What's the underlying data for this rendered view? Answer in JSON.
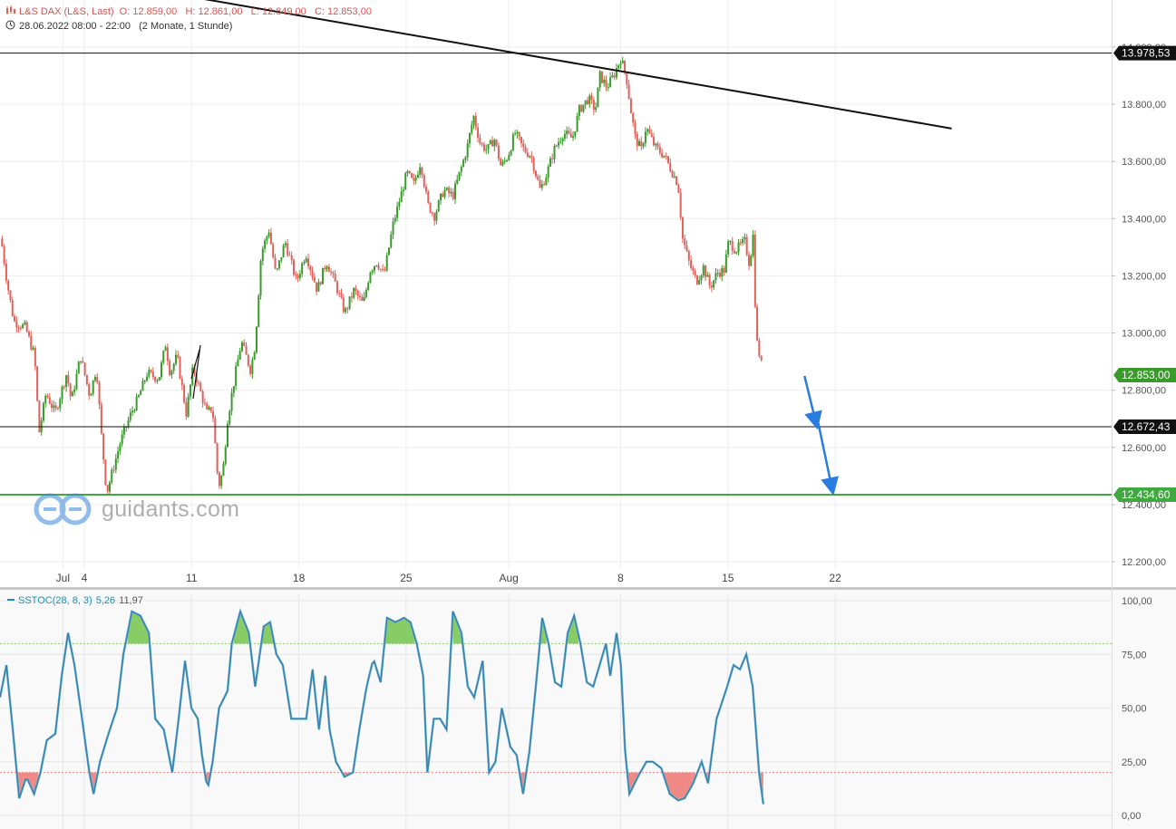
{
  "header": {
    "instrument": "L&S DAX (L&S, Last)",
    "ohlc": "O: 12.859,00   H: 12.861,00   L: 12.849,00   C: 12.853,00",
    "period": "28.06.2022 08:00 - 22:00   (2 Monate, 1 Stunde)"
  },
  "watermark": "guidants.com",
  "indicator": {
    "name": "SSTOC(28, 8, 3)",
    "k": "5,26",
    "d": "11,97"
  },
  "colors": {
    "up": "#3a9a2c",
    "down": "#e0605a",
    "accent_blue": "#2a7de0",
    "support_green": "#3fa93f",
    "stoch_line": "#3f7ea8",
    "stoch_signal": "#65b8d8",
    "overbought_fill": "#88cc66",
    "oversold_fill": "#f08a86"
  },
  "chart_data": [
    {
      "type": "line",
      "title": "L&S DAX (L&S, Last)",
      "x_ticks": [
        "Jul",
        "4",
        "11",
        "18",
        "25",
        "Aug",
        "8",
        "15",
        "22"
      ],
      "y_ticks": [
        "12.200,00",
        "12.400,00",
        "12.600,00",
        "12.800,00",
        "13.000,00",
        "13.200,00",
        "13.400,00",
        "13.600,00",
        "13.800,00",
        "14.000,00"
      ],
      "ylim": [
        12150,
        14150
      ],
      "last_price": "12.853,00",
      "price_path": [
        [
          0,
          13330
        ],
        [
          0.05,
          13300
        ],
        [
          0.15,
          13180
        ],
        [
          0.3,
          13040
        ],
        [
          0.55,
          13020
        ],
        [
          0.75,
          12920
        ],
        [
          0.85,
          12650
        ],
        [
          1.0,
          12790
        ],
        [
          1.2,
          12720
        ],
        [
          1.45,
          12860
        ],
        [
          1.55,
          12760
        ],
        [
          1.75,
          12920
        ],
        [
          1.95,
          12780
        ],
        [
          2.1,
          12880
        ],
        [
          2.2,
          12650
        ],
        [
          2.32,
          12440
        ],
        [
          2.45,
          12520
        ],
        [
          2.62,
          12620
        ],
        [
          2.85,
          12720
        ],
        [
          3.0,
          12770
        ],
        [
          3.2,
          12860
        ],
        [
          3.45,
          12840
        ],
        [
          3.6,
          12960
        ],
        [
          3.7,
          12860
        ],
        [
          3.85,
          12920
        ],
        [
          4.05,
          12720
        ],
        [
          4.2,
          12880
        ],
        [
          4.35,
          12800
        ],
        [
          4.5,
          12720
        ],
        [
          4.62,
          12740
        ],
        [
          4.75,
          12460
        ],
        [
          4.85,
          12520
        ],
        [
          4.95,
          12700
        ],
        [
          5.1,
          12840
        ],
        [
          5.25,
          12970
        ],
        [
          5.45,
          12870
        ],
        [
          5.55,
          12960
        ],
        [
          5.68,
          13280
        ],
        [
          5.85,
          13360
        ],
        [
          6.0,
          13200
        ],
        [
          6.2,
          13320
        ],
        [
          6.45,
          13180
        ],
        [
          6.65,
          13280
        ],
        [
          6.9,
          13150
        ],
        [
          7.1,
          13250
        ],
        [
          7.3,
          13170
        ],
        [
          7.5,
          13070
        ],
        [
          7.7,
          13150
        ],
        [
          7.9,
          13100
        ],
        [
          8.05,
          13220
        ],
        [
          8.2,
          13250
        ],
        [
          8.35,
          13200
        ],
        [
          8.55,
          13380
        ],
        [
          8.7,
          13470
        ],
        [
          8.85,
          13560
        ],
        [
          9.0,
          13520
        ],
        [
          9.15,
          13600
        ],
        [
          9.3,
          13450
        ],
        [
          9.45,
          13410
        ],
        [
          9.65,
          13500
        ],
        [
          9.85,
          13480
        ],
        [
          10.0,
          13560
        ],
        [
          10.15,
          13640
        ],
        [
          10.3,
          13760
        ],
        [
          10.45,
          13660
        ],
        [
          10.6,
          13640
        ],
        [
          10.75,
          13680
        ],
        [
          10.9,
          13580
        ],
        [
          11.05,
          13620
        ],
        [
          11.2,
          13700
        ],
        [
          11.4,
          13640
        ],
        [
          11.55,
          13620
        ],
        [
          11.75,
          13500
        ],
        [
          11.9,
          13560
        ],
        [
          12.05,
          13640
        ],
        [
          12.25,
          13700
        ],
        [
          12.45,
          13680
        ],
        [
          12.6,
          13780
        ],
        [
          12.8,
          13820
        ],
        [
          12.95,
          13780
        ],
        [
          13.05,
          13900
        ],
        [
          13.2,
          13860
        ],
        [
          13.35,
          13900
        ],
        [
          13.5,
          13960
        ],
        [
          13.62,
          13900
        ],
        [
          13.72,
          13780
        ],
        [
          13.82,
          13680
        ],
        [
          13.95,
          13640
        ],
        [
          14.05,
          13720
        ],
        [
          14.25,
          13650
        ],
        [
          14.45,
          13620
        ],
        [
          14.6,
          13570
        ],
        [
          14.75,
          13520
        ],
        [
          14.85,
          13330
        ],
        [
          15.0,
          13240
        ],
        [
          15.15,
          13180
        ],
        [
          15.3,
          13230
        ],
        [
          15.45,
          13160
        ],
        [
          15.6,
          13210
        ],
        [
          15.75,
          13220
        ],
        [
          15.85,
          13320
        ],
        [
          16.0,
          13290
        ],
        [
          16.2,
          13320
        ],
        [
          16.3,
          13240
        ],
        [
          16.38,
          13340
        ],
        [
          16.45,
          12980
        ],
        [
          16.55,
          12900
        ],
        [
          16.6,
          12853
        ]
      ],
      "resistance_h": 13978.53,
      "support_h": 12672.43,
      "support_h_green": 12434.6,
      "trend_line": [
        [
          4.35,
          14170
        ],
        [
          20.7,
          13715
        ]
      ],
      "projection": [
        [
          17.5,
          12850
        ],
        [
          17.75,
          12685
        ],
        [
          17.8,
          12685
        ],
        [
          18.1,
          12455
        ]
      ],
      "labels": [
        "13.978,53",
        "12.853,00",
        "12.672,43",
        "12.434,60"
      ]
    },
    {
      "type": "line",
      "title": "SSTOC(28, 8, 3)",
      "ylim": [
        0,
        100
      ],
      "y_ticks": [
        "0,00",
        "25,00",
        "50,00",
        "75,00",
        "100,00"
      ],
      "levels": [
        20,
        80
      ],
      "values": [
        [
          0,
          55
        ],
        [
          0.15,
          70
        ],
        [
          0.3,
          40
        ],
        [
          0.45,
          8
        ],
        [
          0.62,
          18
        ],
        [
          0.8,
          10
        ],
        [
          0.95,
          20
        ],
        [
          1.1,
          35
        ],
        [
          1.3,
          38
        ],
        [
          1.45,
          65
        ],
        [
          1.6,
          85
        ],
        [
          1.75,
          70
        ],
        [
          1.95,
          42
        ],
        [
          2.1,
          20
        ],
        [
          2.2,
          10
        ],
        [
          2.35,
          25
        ],
        [
          2.55,
          38
        ],
        [
          2.75,
          50
        ],
        [
          2.9,
          75
        ],
        [
          3.1,
          95
        ],
        [
          3.3,
          93
        ],
        [
          3.5,
          85
        ],
        [
          3.65,
          45
        ],
        [
          3.85,
          40
        ],
        [
          4.05,
          20
        ],
        [
          4.2,
          45
        ],
        [
          4.35,
          72
        ],
        [
          4.5,
          50
        ],
        [
          4.65,
          45
        ],
        [
          4.75,
          28
        ],
        [
          4.88,
          12
        ],
        [
          5.0,
          25
        ],
        [
          5.15,
          50
        ],
        [
          5.35,
          58
        ],
        [
          5.45,
          80
        ],
        [
          5.65,
          95
        ],
        [
          5.85,
          85
        ],
        [
          6.0,
          60
        ],
        [
          6.2,
          88
        ],
        [
          6.35,
          90
        ],
        [
          6.5,
          75
        ],
        [
          6.65,
          70
        ],
        [
          6.85,
          45
        ],
        [
          7.05,
          45
        ],
        [
          7.2,
          45
        ],
        [
          7.35,
          68
        ],
        [
          7.5,
          40
        ],
        [
          7.65,
          65
        ],
        [
          7.75,
          40
        ],
        [
          7.9,
          25
        ],
        [
          8.1,
          18
        ],
        [
          8.3,
          20
        ],
        [
          8.45,
          40
        ],
        [
          8.62,
          60
        ],
        [
          8.78,
          73
        ],
        [
          8.95,
          62
        ],
        [
          9.1,
          92
        ],
        [
          9.3,
          90
        ],
        [
          9.5,
          92
        ],
        [
          9.65,
          90
        ],
        [
          9.8,
          80
        ],
        [
          9.95,
          65
        ],
        [
          10.05,
          20
        ],
        [
          10.2,
          45
        ],
        [
          10.35,
          45
        ],
        [
          10.5,
          40
        ],
        [
          10.65,
          95
        ],
        [
          10.85,
          85
        ],
        [
          11.0,
          60
        ],
        [
          11.15,
          55
        ],
        [
          11.35,
          72
        ],
        [
          11.5,
          20
        ],
        [
          11.65,
          25
        ],
        [
          11.8,
          50
        ],
        [
          12.0,
          32
        ],
        [
          12.15,
          28
        ],
        [
          12.3,
          10
        ],
        [
          12.45,
          30
        ],
        [
          12.6,
          60
        ],
        [
          12.75,
          92
        ],
        [
          12.9,
          80
        ],
        [
          13.05,
          62
        ],
        [
          13.2,
          60
        ],
        [
          13.35,
          85
        ],
        [
          13.5,
          93
        ],
        [
          13.65,
          80
        ],
        [
          13.8,
          62
        ],
        [
          13.95,
          60
        ],
        [
          14.1,
          70
        ],
        [
          14.25,
          80
        ],
        [
          14.35,
          65
        ],
        [
          14.5,
          85
        ],
        [
          14.6,
          70
        ],
        [
          14.7,
          30
        ],
        [
          14.8,
          10
        ],
        [
          15.0,
          18
        ],
        [
          15.2,
          25
        ],
        [
          15.35,
          25
        ],
        [
          15.55,
          22
        ],
        [
          15.75,
          10
        ],
        [
          15.95,
          7
        ],
        [
          16.1,
          8
        ],
        [
          16.3,
          15
        ],
        [
          16.5,
          25
        ],
        [
          16.65,
          15
        ],
        [
          16.85,
          45
        ],
        [
          17.1,
          60
        ],
        [
          17.25,
          70
        ],
        [
          17.4,
          68
        ],
        [
          17.55,
          75
        ],
        [
          17.7,
          60
        ],
        [
          17.85,
          20
        ],
        [
          17.95,
          5.26
        ]
      ]
    }
  ]
}
